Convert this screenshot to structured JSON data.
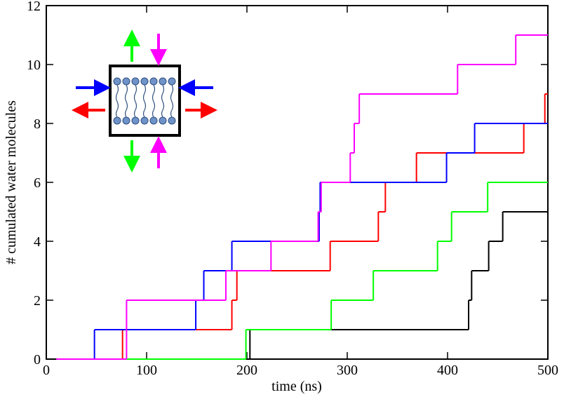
{
  "chart_data": {
    "type": "step",
    "xlabel": "time (ns)",
    "ylabel": "# cumulated water molecules",
    "xlim": [
      0,
      500
    ],
    "xticks": [
      0,
      100,
      200,
      300,
      400,
      500
    ],
    "ylim": [
      0,
      12
    ],
    "yticks": [
      0,
      2,
      4,
      6,
      8,
      10,
      12
    ],
    "series": [
      {
        "color": "#000000",
        "x": [
          10,
          203,
          421,
          424,
          441,
          455,
          500
        ],
        "values": [
          0,
          1,
          2,
          3,
          4,
          5,
          5
        ]
      },
      {
        "color": "#00ff00",
        "x": [
          10,
          199,
          284,
          326,
          390,
          404,
          440,
          500
        ],
        "values": [
          0,
          1,
          2,
          3,
          4,
          5,
          6,
          6
        ]
      },
      {
        "color": "#ff0000",
        "x": [
          10,
          76,
          185,
          190,
          283,
          331,
          338,
          369,
          476,
          497,
          500
        ],
        "values": [
          0,
          1,
          2,
          3,
          4,
          5,
          6,
          7,
          8,
          9,
          9
        ]
      },
      {
        "color": "#0000ff",
        "x": [
          10,
          48,
          149,
          157,
          185,
          272,
          273,
          399,
          427,
          500
        ],
        "values": [
          0,
          1,
          2,
          3,
          4,
          5,
          6,
          7,
          8,
          8
        ]
      },
      {
        "color": "#ff00ff",
        "x": [
          10,
          80,
          179,
          224,
          271,
          274,
          303,
          307,
          312,
          410,
          468,
          500
        ],
        "values": [
          0,
          2,
          3,
          4,
          5,
          6,
          7,
          8,
          9,
          10,
          11,
          11
        ]
      }
    ]
  }
}
